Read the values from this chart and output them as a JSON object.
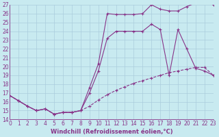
{
  "xlabel": "Windchill (Refroidissement éolien,°C)",
  "bg_color": "#c8eaf0",
  "line_color": "#883388",
  "grid_color": "#aaccdd",
  "xmin": 0,
  "xmax": 23,
  "ymin": 14,
  "ymax": 27,
  "line1_x": [
    0,
    1,
    2,
    3,
    4,
    5,
    6,
    7,
    8,
    9,
    10,
    11,
    12,
    13,
    14,
    15,
    16,
    17,
    18,
    19,
    20,
    21,
    22,
    23
  ],
  "line1_y": [
    16.7,
    16.1,
    15.5,
    15.0,
    15.2,
    14.6,
    14.8,
    14.8,
    15.0,
    17.6,
    20.3,
    26.0,
    25.9,
    25.9,
    25.9,
    26.0,
    27.0,
    26.5,
    26.3,
    26.3,
    26.8,
    27.2,
    27.3,
    27.0
  ],
  "line2_x": [
    0,
    1,
    2,
    3,
    4,
    5,
    6,
    7,
    8,
    9,
    10,
    11,
    12,
    13,
    14,
    15,
    16,
    17,
    18,
    19,
    20,
    21,
    22,
    23
  ],
  "line2_y": [
    16.7,
    16.1,
    15.5,
    15.0,
    15.2,
    14.6,
    14.8,
    14.8,
    15.0,
    17.0,
    19.5,
    23.2,
    24.0,
    24.0,
    24.0,
    24.0,
    24.8,
    24.2,
    19.0,
    24.2,
    22.0,
    19.8,
    19.5,
    19.0
  ],
  "line3_x": [
    0,
    1,
    2,
    3,
    4,
    5,
    6,
    7,
    8,
    9,
    10,
    11,
    12,
    13,
    14,
    15,
    16,
    17,
    18,
    19,
    20,
    21,
    22,
    23
  ],
  "line3_y": [
    16.7,
    16.1,
    15.5,
    15.0,
    15.2,
    14.6,
    14.8,
    14.8,
    15.0,
    15.5,
    16.2,
    16.8,
    17.3,
    17.7,
    18.1,
    18.4,
    18.7,
    19.0,
    19.3,
    19.5,
    19.7,
    19.9,
    19.9,
    19.0
  ],
  "xticks": [
    0,
    1,
    2,
    3,
    4,
    5,
    6,
    7,
    8,
    9,
    10,
    11,
    12,
    13,
    14,
    15,
    16,
    17,
    18,
    19,
    20,
    21,
    22,
    23
  ],
  "yticks": [
    14,
    15,
    16,
    17,
    18,
    19,
    20,
    21,
    22,
    23,
    24,
    25,
    26,
    27
  ],
  "tick_fontsize": 5.5,
  "xlabel_fontsize": 6.0
}
